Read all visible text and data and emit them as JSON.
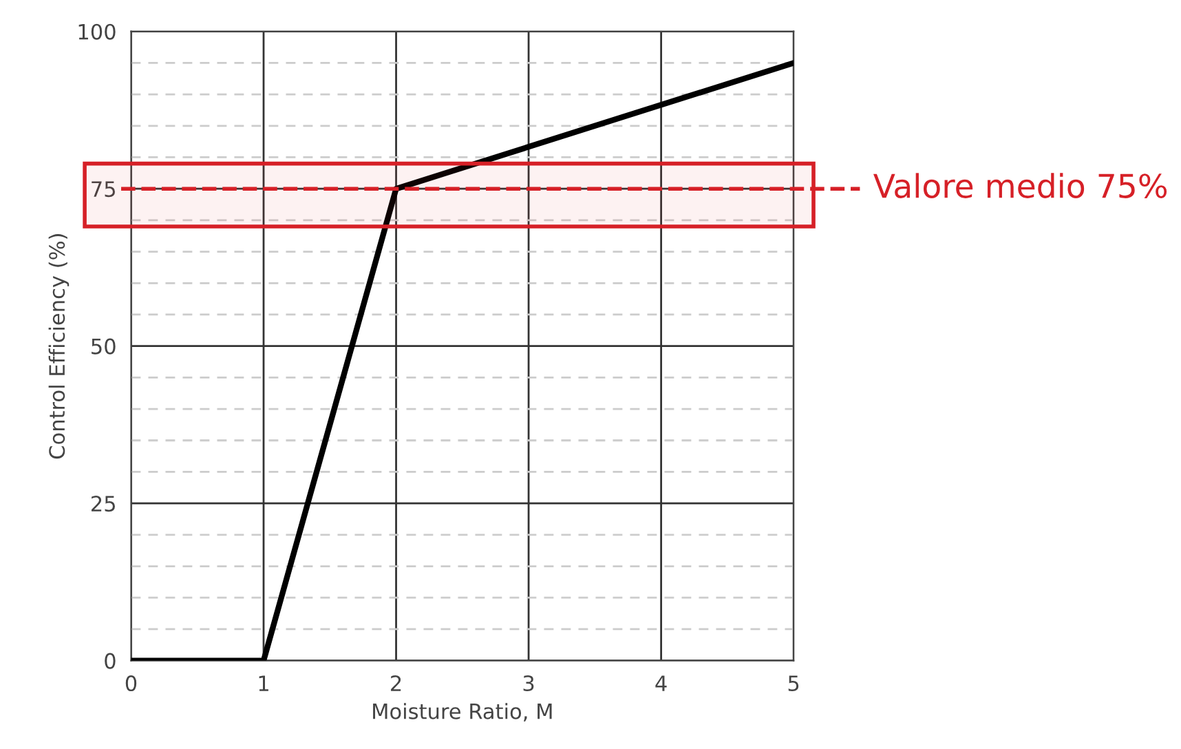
{
  "chart_data": {
    "type": "line",
    "xlabel": "Moisture Ratio, M",
    "ylabel": "Control Efficiency (%)",
    "x": [
      0,
      1,
      2,
      5
    ],
    "series": [
      {
        "color": "#000000",
        "values": [
          0,
          0,
          75,
          95
        ]
      }
    ],
    "xlim": [
      0,
      5
    ],
    "xticks": [
      0,
      1,
      2,
      3,
      4,
      5
    ],
    "ylim": [
      0,
      100
    ],
    "yticks": [
      0,
      {
        "value": 5,
        "label": null
      },
      {
        "value": 10,
        "label": null
      },
      {
        "value": 15,
        "label": null
      },
      {
        "value": 20,
        "label": null
      },
      25,
      {
        "value": 30,
        "label": null
      },
      {
        "value": 35,
        "label": null
      },
      {
        "value": 40,
        "label": null
      },
      {
        "value": 45,
        "label": null
      },
      50,
      {
        "value": 55,
        "label": null
      },
      {
        "value": 60,
        "label": null
      },
      {
        "value": 65,
        "label": null
      },
      {
        "value": 70,
        "label": null
      },
      75,
      {
        "value": 80,
        "label": null
      },
      {
        "value": 85,
        "label": null
      },
      {
        "value": 90,
        "label": null
      },
      {
        "value": 95,
        "label": null
      },
      100
    ],
    "grid": true,
    "marker": "none",
    "line_style": "solid",
    "legend": false,
    "ref_lines": [
      {
        "axis": "y",
        "value": 75,
        "label": "Valore medio 75%",
        "color": "#d62027",
        "line_style": "dashed"
      }
    ],
    "bands": [
      {
        "axis": "y",
        "from": 69,
        "to": 79,
        "color": "#d62027"
      }
    ]
  }
}
